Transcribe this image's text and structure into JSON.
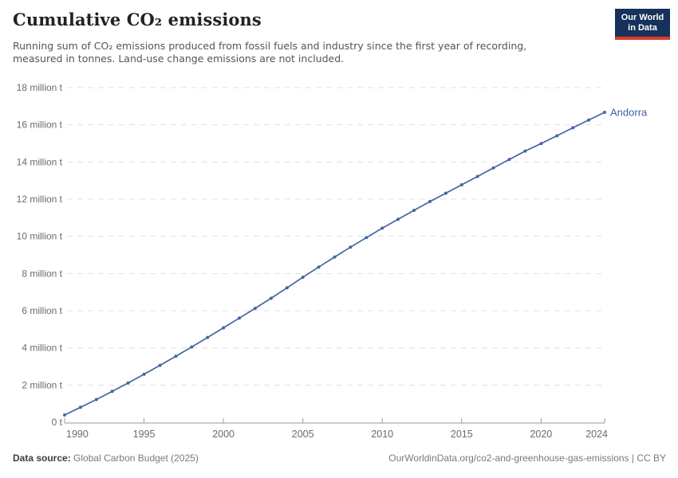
{
  "header": {
    "title": "Cumulative CO₂ emissions",
    "subtitle_line1": "Running sum of CO₂ emissions produced from fossil fuels and industry since the first year of recording,",
    "subtitle_line2": "measured in tonnes. Land-use change emissions are not included.",
    "logo_line1": "Our World",
    "logo_line2": "in Data"
  },
  "footer": {
    "source_label": "Data source:",
    "source_value": "Global Carbon Budget (2025)",
    "attribution": "OurWorldinData.org/co2-and-greenhouse-gas-emissions | CC BY"
  },
  "colors": {
    "line": "#4664a5",
    "series_label": "#4060a8",
    "grid": "#e0e0e0",
    "axis": "#9a9a9a",
    "tick_text": "#6b6b6b",
    "title_text": "#222222",
    "logo_bg": "#16315a",
    "logo_stripe": "#dc3a2b"
  },
  "chart_data": {
    "type": "line",
    "title": "Cumulative CO₂ emissions",
    "unit": "million tonnes",
    "grid": "horizontal dashed",
    "legend": "end-of-line label",
    "xlim": [
      1990,
      2024
    ],
    "ylim": [
      0,
      18
    ],
    "x": [
      1990,
      1991,
      1992,
      1993,
      1994,
      1995,
      1996,
      1997,
      1998,
      1999,
      2000,
      2001,
      2002,
      2003,
      2004,
      2005,
      2006,
      2007,
      2008,
      2009,
      2010,
      2011,
      2012,
      2013,
      2014,
      2015,
      2016,
      2017,
      2018,
      2019,
      2020,
      2021,
      2022,
      2023,
      2024
    ],
    "series": [
      {
        "name": "Andorra",
        "values": [
          0.39,
          0.8,
          1.22,
          1.66,
          2.11,
          2.58,
          3.06,
          3.55,
          4.05,
          4.56,
          5.08,
          5.6,
          6.13,
          6.67,
          7.23,
          7.8,
          8.35,
          8.89,
          9.42,
          9.93,
          10.44,
          10.92,
          11.4,
          11.87,
          12.32,
          12.77,
          13.22,
          13.68,
          14.14,
          14.59,
          14.99,
          15.41,
          15.84,
          16.26,
          16.67
        ]
      }
    ],
    "yticks": {
      "values": [
        0,
        2,
        4,
        6,
        8,
        10,
        12,
        14,
        16,
        18
      ],
      "labels": [
        "0 t",
        "2 million t",
        "4 million t",
        "6 million t",
        "8 million t",
        "10 million t",
        "12 million t",
        "14 million t",
        "16 million t",
        "18 million t"
      ]
    },
    "xticks": {
      "values": [
        1990,
        1995,
        2000,
        2005,
        2010,
        2015,
        2020,
        2024
      ],
      "labels": [
        "1990",
        "1995",
        "2000",
        "2005",
        "2010",
        "2015",
        "2020",
        "2024"
      ]
    }
  }
}
